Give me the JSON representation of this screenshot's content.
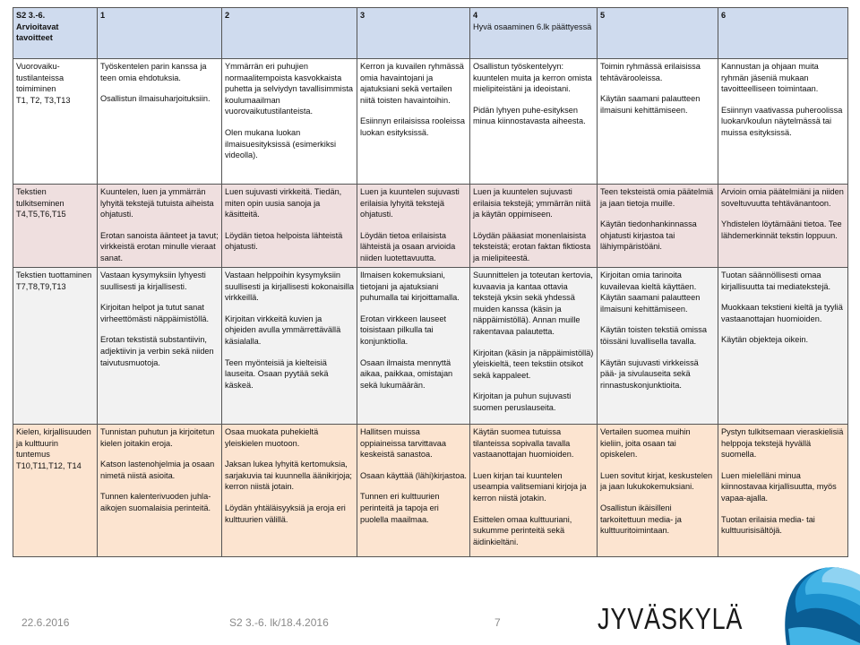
{
  "table": {
    "header": [
      [
        "S2 3.-6.",
        "Arvioitavat",
        "tavoitteet"
      ],
      [
        "1"
      ],
      [
        "2"
      ],
      [
        "3"
      ],
      [
        "4",
        "Hyvä osaaminen 6.lk päättyessä"
      ],
      [
        "5"
      ],
      [
        "6"
      ]
    ],
    "rows": [
      {
        "goal": [
          "Vuorovaiku-tustilanteissa toimiminen",
          "T1, T2, T3,T13"
        ],
        "cells": [
          [
            "Työskentelen parin kanssa ja teen omia ehdotuksia.",
            "Osallistun ilmaisuharjoituksiin."
          ],
          [
            "Ymmärrän eri puhujien normaalitempoista kasvokkaista puhetta ja selviydyn tavallisimmista koulumaailman vuorovaikutustilanteista.",
            "Olen mukana luokan ilmaisuesityksissä (esimerkiksi videolla)."
          ],
          [
            "Kerron ja kuvailen ryhmässä omia havaintojani ja ajatuksiani sekä vertailen niitä toisten havaintoihin.",
            "Esiinnyn erilaisissa rooleissa luokan esityksissä."
          ],
          [
            "Osallistun työskentelyyn: kuuntelen muita ja kerron omista mielipiteistäni ja ideoistani.",
            "Pidän lyhyen puhe-esityksen minua kiinnostavasta aiheesta."
          ],
          [
            "Toimin ryhmässä erilaisissa tehtävärooleissa.",
            "Käytän saamani palautteen ilmaisuni kehittämiseen."
          ],
          [
            "Kannustan ja ohjaan muita ryhmän jäseniä mukaan tavoitteelliseen toimintaan.",
            "Esiinnyn vaativassa puheroolissa luokan/koulun näytelmässä tai muissa esityksissä."
          ]
        ]
      },
      {
        "goal": [
          "Tekstien tulkitseminen",
          "T4,T5,T6,T15"
        ],
        "cells": [
          [
            "Kuuntelen, luen ja ymmärrän lyhyitä tekstejä tutuista aiheista ohjatusti.",
            "Erotan sanoista äänteet ja tavut; virkkeistä erotan minulle vieraat sanat."
          ],
          [
            "Luen sujuvasti virkkeitä. Tiedän, miten opin uusia sanoja ja käsitteitä.",
            "Löydän tietoa helpoista lähteistä ohjatusti."
          ],
          [
            "Luen ja kuuntelen sujuvasti erilaisia lyhyitä tekstejä ohjatusti.",
            "Löydän tietoa erilaisista lähteistä ja osaan arvioida niiden luotettavuutta."
          ],
          [
            "Luen ja kuuntelen sujuvasti erilaisia tekstejä; ymmärrän niitä ja käytän oppimiseen.",
            "Löydän pääasiat monenlaisista teksteistä; erotan faktan fiktiosta ja mielipiteestä."
          ],
          [
            "Teen teksteistä omia päätelmiä ja jaan tietoja muille.",
            "Käytän tiedonhankinnassa ohjatusti kirjastoa tai lähiympäristöäni."
          ],
          [
            "Arvioin omia päätelmiäni ja niiden soveltuvuutta tehtävänantoon.",
            "Yhdistelen löytämääni tietoa. Tee lähdemerkinnät tekstin loppuun."
          ]
        ]
      },
      {
        "goal": [
          "Tekstien tuottaminen",
          " T7,T8,T9,T13"
        ],
        "cells": [
          [
            "Vastaan kysymyksiin lyhyesti suullisesti ja kirjallisesti.",
            "Kirjoitan helpot ja tutut sanat virheettömästi näppäimistöllä.",
            "Erotan tekstistä substantiivin, adjektiivin ja verbin sekä niiden taivutusmuotoja."
          ],
          [
            "Vastaan helppoihin kysymyksiin suullisesti ja kirjallisesti kokonaisilla virkkeillä.",
            "Kirjoitan virkkeitä kuvien ja ohjeiden avulla ymmärrettävällä käsialalla.",
            "Teen myönteisiä ja kielteisiä lauseita. Osaan pyytää sekä käskeä."
          ],
          [
            "Ilmaisen kokemuksiani, tietojani ja ajatuksiani puhumalla tai kirjoittamalla.",
            "Erotan virkkeen lauseet toisistaan pilkulla tai konjunktiolla.",
            "Osaan ilmaista mennyttä aikaa, paikkaa, omistajan sekä lukumäärän."
          ],
          [
            "Suunnittelen ja toteutan kertovia, kuvaavia ja kantaa ottavia tekstejä yksin sekä yhdessä muiden kanssa (käsin ja näppäimistöllä). Annan muille rakentavaa palautetta.",
            "Kirjoitan (käsin ja näppäimistöllä) yleiskieltä, teen tekstiin otsikot sekä kappaleet.",
            "Kirjoitan ja puhun sujuvasti suomen peruslauseita."
          ],
          [
            "Kirjoitan omia tarinoita kuvailevaa kieltä käyttäen. Käytän saamani palautteen ilmaisuni kehittämiseen.",
            "Käytän toisten tekstiä omissa töissäni luvallisella tavalla.",
            " Käytän sujuvasti virkkeissä pää- ja sivulauseita sekä rinnastuskonjunktioita."
          ],
          [
            "Tuotan säännöllisesti omaa kirjallisuutta tai mediatekstejä.",
            "Muokkaan tekstieni kieltä ja tyyliä vastaanottajan huomioiden.",
            " Käytän objekteja oikein."
          ]
        ]
      },
      {
        "goal": [
          "Kielen, kirjallisuuden ja kulttuurin tuntemus",
          "T10,T11,T12, T14"
        ],
        "cells": [
          [
            "Tunnistan puhutun ja kirjoitetun kielen joitakin eroja.",
            "Katson lastenohjelmia ja osaan nimetä niistä asioita.",
            "Tunnen kalenterivuoden juhla-aikojen suomalaisia perinteitä."
          ],
          [
            "Osaa muokata puhekieltä yleiskielen muotoon.",
            "Jaksan lukea lyhyitä kertomuksia, sarjakuvia tai kuunnella äänikirjoja; kerron niistä jotain.",
            "Löydän yhtäläisyyksiä ja eroja eri kulttuurien välillä."
          ],
          [
            "Hallitsen muissa oppiaineissa tarvittavaa keskeistä sanastoa.",
            "Osaan käyttää (lähi)kirjastoa.",
            "Tunnen eri kulttuurien perinteitä ja tapoja eri puolella maailmaa."
          ],
          [
            "Käytän suomea tutuissa tilanteissa sopivalla tavalla vastaanottajan huomioiden.",
            "Luen kirjan tai kuuntelen useampia valitsemiani kirjoja ja kerron niistä jotakin.",
            "Esittelen omaa kulttuuriani, sukumme perinteitä sekä äidinkieltäni."
          ],
          [
            "Vertailen suomea muihin kieliin, joita osaan tai opiskelen.",
            "Luen sovitut kirjat, keskustelen ja jaan lukukokemuksiani.",
            "Osallistun ikäisilleni tarkoitettuun media- ja kulttuuritoimintaan."
          ],
          [
            "Pystyn tulkitsemaan vieraskielisiä helppoja tekstejä hyvällä suomella.",
            "Luen mielelläni minua kiinnostavaa kirjallisuutta, myös vapaa-ajalla.",
            "Tuotan erilaisia media- tai kulttuurisisältöjä."
          ]
        ]
      }
    ]
  },
  "footer": {
    "date": "22.6.2016",
    "source": "S2 3.-6. lk/18.4.2016",
    "page": "7"
  },
  "logo": {
    "text": "JYVÄSKYLÄ",
    "colors": [
      "#0a5d94",
      "#1b8fcc",
      "#43b4e6",
      "#8fd3f2"
    ]
  }
}
